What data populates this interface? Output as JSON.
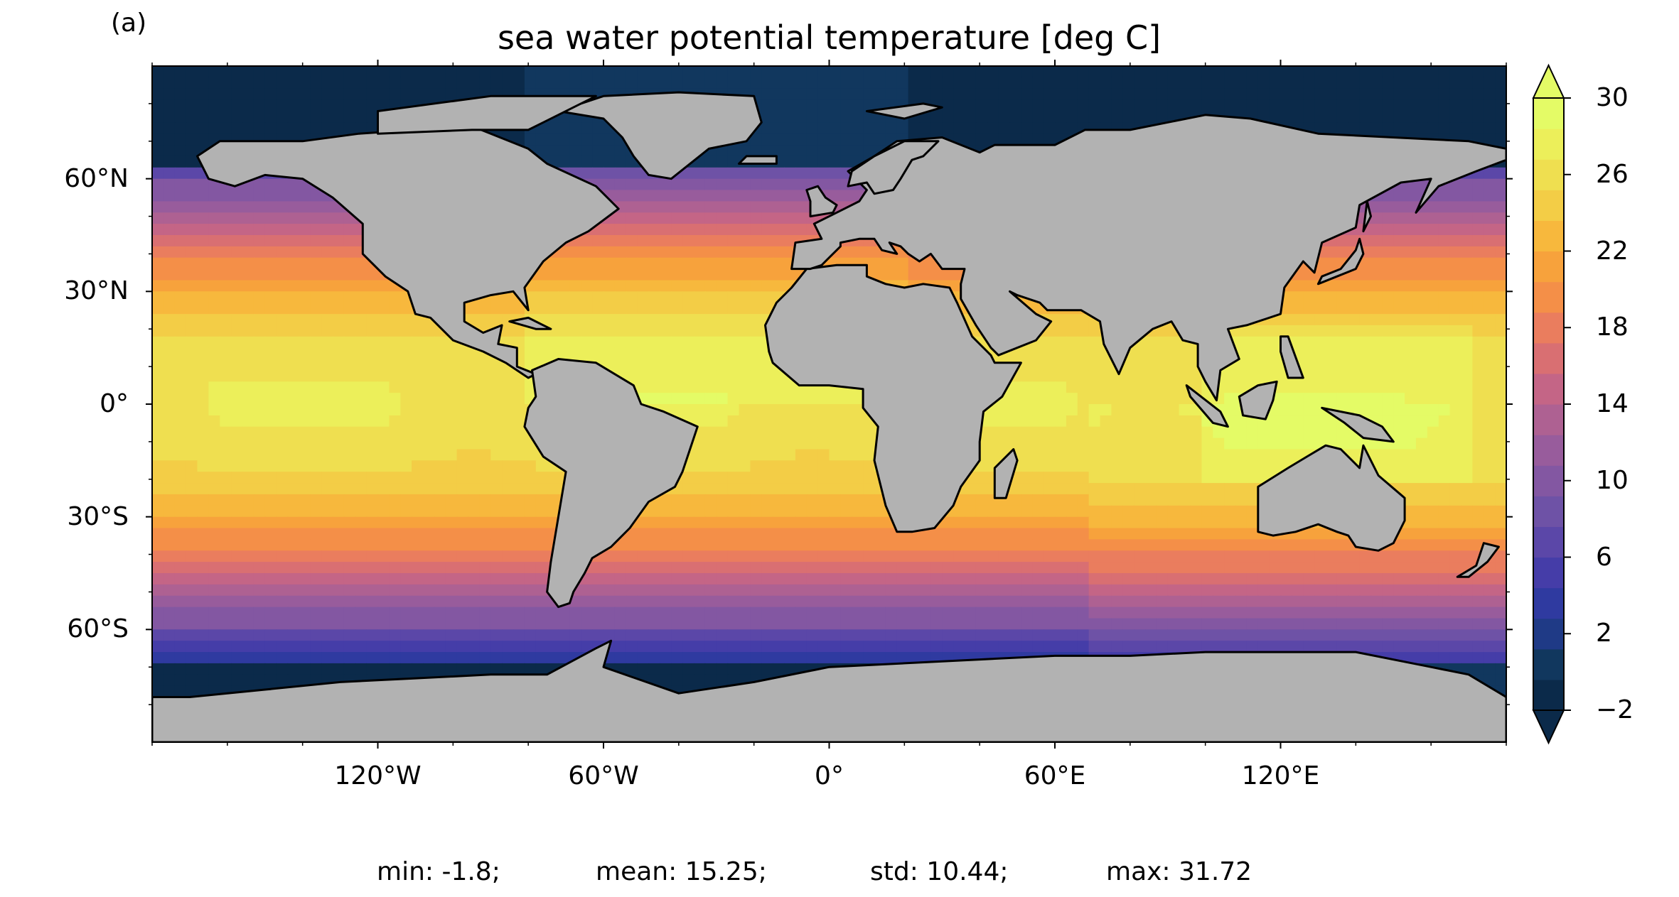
{
  "panel_label": "(a)",
  "title": "sea water potential temperature [deg C]",
  "map": {
    "projection": "plate carree",
    "lon_range": [
      -180,
      180
    ],
    "lat_range": [
      -90,
      90
    ],
    "land_color": "#b2b2b2",
    "coastline_color": "#000000",
    "missing_color": "#ffffff"
  },
  "lat_ticks": [
    {
      "value": 60,
      "label": "60°N"
    },
    {
      "value": 30,
      "label": "30°N"
    },
    {
      "value": 0,
      "label": "0°"
    },
    {
      "value": -30,
      "label": "30°S"
    },
    {
      "value": -60,
      "label": "60°S"
    }
  ],
  "lon_ticks": [
    {
      "value": -120,
      "label": "120°W"
    },
    {
      "value": -60,
      "label": "60°W"
    },
    {
      "value": 0,
      "label": "0°"
    },
    {
      "value": 60,
      "label": "60°E"
    },
    {
      "value": 120,
      "label": "120°E"
    }
  ],
  "colorbar": {
    "colormap": "thermal",
    "min": -2,
    "max": 30,
    "extend": "both",
    "ticks": [
      {
        "value": 30,
        "label": "30"
      },
      {
        "value": 26,
        "label": "26"
      },
      {
        "value": 22,
        "label": "22"
      },
      {
        "value": 18,
        "label": "18"
      },
      {
        "value": 14,
        "label": "14"
      },
      {
        "value": 10,
        "label": "10"
      },
      {
        "value": 6,
        "label": "6"
      },
      {
        "value": 2,
        "label": "2"
      },
      {
        "value": -2,
        "label": "−2"
      }
    ],
    "colors": [
      "#0b2a4a",
      "#11375e",
      "#1f3a86",
      "#2f3aa0",
      "#453da8",
      "#5b47a8",
      "#6e52a6",
      "#8357a2",
      "#985c9c",
      "#ae6192",
      "#c46586",
      "#d96f72",
      "#ea7d5e",
      "#f48f48",
      "#f7a23c",
      "#f7b83d",
      "#f3cd46",
      "#efdf50",
      "#ecef5a",
      "#e4fb66"
    ],
    "under_color": "#0b2a4a",
    "over_color": "#e4fb66"
  },
  "stats": {
    "min": "min: -1.8;",
    "mean": "mean: 15.25;",
    "std": "std: 10.44;",
    "max": "max: 31.72"
  }
}
